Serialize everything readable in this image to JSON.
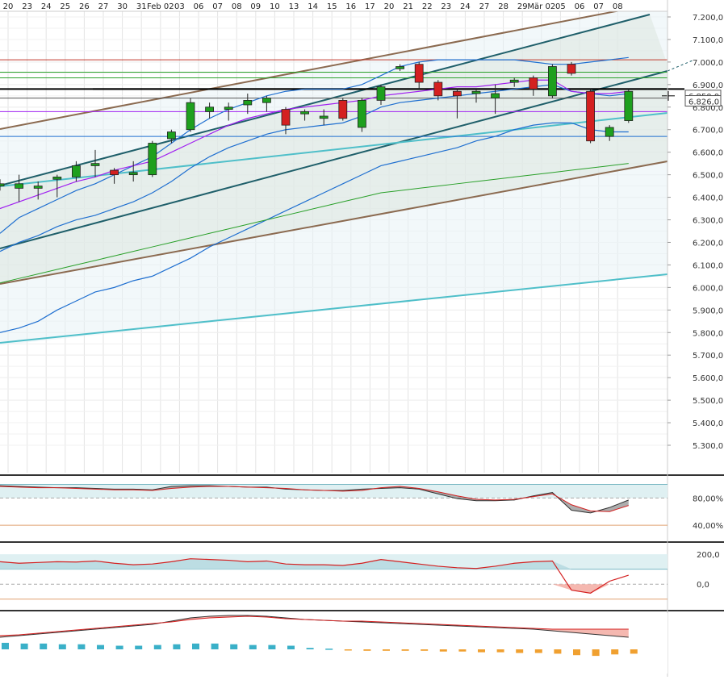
{
  "chart_data": [
    {
      "type": "candlestick",
      "panel": "price",
      "x_labels": [
        "20",
        "23",
        "24",
        "25",
        "26",
        "27",
        "30",
        "31",
        "Feb 02",
        "03",
        "06",
        "07",
        "08",
        "09",
        "10",
        "13",
        "14",
        "15",
        "16",
        "17",
        "20",
        "21",
        "22",
        "23",
        "24",
        "27",
        "28",
        "29",
        "Mär 02",
        "05",
        "06",
        "07",
        "08"
      ],
      "y_ticks": [
        "7.200,0",
        "7.100,0",
        "7.000,0",
        "6.900,0",
        "6.800,0",
        "6.700,0",
        "6.600,0",
        "6.500,0",
        "6.400,0",
        "6.300,0",
        "6.200,0",
        "6.100,0",
        "6.000,0",
        "5.900,0",
        "5.800,0",
        "5.700,0",
        "5.600,0",
        "5.500,0",
        "5.400,0",
        "5.300,0"
      ],
      "ylim": [
        5250,
        7250
      ],
      "price_tags": [
        "6.850,0",
        "6.826,0"
      ],
      "candles": [
        {
          "x": "20",
          "o": 6450,
          "h": 6480,
          "l": 6430,
          "c": 6460
        },
        {
          "x": "23",
          "o": 6440,
          "h": 6500,
          "l": 6380,
          "c": 6460
        },
        {
          "x": "24",
          "o": 6440,
          "h": 6470,
          "l": 6390,
          "c": 6450
        },
        {
          "x": "25",
          "o": 6480,
          "h": 6500,
          "l": 6400,
          "c": 6490
        },
        {
          "x": "26",
          "o": 6490,
          "h": 6560,
          "l": 6470,
          "c": 6540
        },
        {
          "x": "27",
          "o": 6540,
          "h": 6610,
          "l": 6490,
          "c": 6550
        },
        {
          "x": "30",
          "o": 6520,
          "h": 6530,
          "l": 6460,
          "c": 6500
        },
        {
          "x": "31",
          "o": 6500,
          "h": 6560,
          "l": 6470,
          "c": 6510
        },
        {
          "x": "Feb 02",
          "o": 6500,
          "h": 6650,
          "l": 6490,
          "c": 6640
        },
        {
          "x": "03",
          "o": 6660,
          "h": 6700,
          "l": 6640,
          "c": 6690
        },
        {
          "x": "06",
          "o": 6700,
          "h": 6840,
          "l": 6690,
          "c": 6820
        },
        {
          "x": "07",
          "o": 6780,
          "h": 6820,
          "l": 6750,
          "c": 6800
        },
        {
          "x": "08",
          "o": 6790,
          "h": 6820,
          "l": 6740,
          "c": 6800
        },
        {
          "x": "09",
          "o": 6810,
          "h": 6860,
          "l": 6770,
          "c": 6830
        },
        {
          "x": "10",
          "o": 6820,
          "h": 6850,
          "l": 6780,
          "c": 6840
        },
        {
          "x": "13",
          "o": 6790,
          "h": 6800,
          "l": 6680,
          "c": 6720
        },
        {
          "x": "14",
          "o": 6770,
          "h": 6790,
          "l": 6740,
          "c": 6780
        },
        {
          "x": "15",
          "o": 6750,
          "h": 6790,
          "l": 6720,
          "c": 6760
        },
        {
          "x": "16",
          "o": 6830,
          "h": 6840,
          "l": 6740,
          "c": 6750
        },
        {
          "x": "17",
          "o": 6710,
          "h": 6840,
          "l": 6690,
          "c": 6830
        },
        {
          "x": "20",
          "o": 6830,
          "h": 6900,
          "l": 6810,
          "c": 6890
        },
        {
          "x": "21",
          "o": 6970,
          "h": 6990,
          "l": 6960,
          "c": 6980
        },
        {
          "x": "22",
          "o": 6990,
          "h": 7000,
          "l": 6880,
          "c": 6910
        },
        {
          "x": "23",
          "o": 6910,
          "h": 6920,
          "l": 6830,
          "c": 6850
        },
        {
          "x": "24",
          "o": 6870,
          "h": 6880,
          "l": 6750,
          "c": 6850
        },
        {
          "x": "27",
          "o": 6860,
          "h": 6880,
          "l": 6820,
          "c": 6870
        },
        {
          "x": "28",
          "o": 6840,
          "h": 6900,
          "l": 6770,
          "c": 6860
        },
        {
          "x": "29",
          "o": 6910,
          "h": 6930,
          "l": 6890,
          "c": 6920
        },
        {
          "x": "Mär 02",
          "o": 6930,
          "h": 6940,
          "l": 6850,
          "c": 6880
        },
        {
          "x": "05",
          "o": 6850,
          "h": 6990,
          "l": 6840,
          "c": 6980
        },
        {
          "x": "06",
          "o": 6990,
          "h": 7000,
          "l": 6940,
          "c": 6950
        },
        {
          "x": "07",
          "o": 6870,
          "h": 6880,
          "l": 6640,
          "c": 6650
        },
        {
          "x": "08",
          "o": 6670,
          "h": 6720,
          "l": 6650,
          "c": 6710
        },
        {
          "x": "09",
          "o": 6740,
          "h": 6880,
          "l": 6730,
          "c": 6870
        }
      ],
      "horizontal_lines": [
        {
          "y": 7010,
          "color": "#c0392b"
        },
        {
          "y": 6955,
          "color": "#2aa02a"
        },
        {
          "y": 6930,
          "color": "#2aa02a"
        },
        {
          "y": 6880,
          "color": "#000000"
        },
        {
          "y": 6840,
          "color": "#555555"
        },
        {
          "y": 6780,
          "color": "#a020f0"
        },
        {
          "y": 6670,
          "color": "#1f6fd0"
        }
      ],
      "colors": {
        "up": "#1ea01e",
        "down": "#d42020",
        "channel_outer": "#8b6a50",
        "channel_inner": "#1f5f6a",
        "channel_light": "#4fbfc9"
      }
    },
    {
      "type": "area",
      "panel": "oscillator-1",
      "y_ticks": [
        "80,00%",
        "40,00%"
      ],
      "ylim": [
        20,
        110
      ],
      "series_a": [
        98,
        97,
        96,
        95,
        95,
        94,
        93,
        93,
        92,
        97,
        98,
        98,
        97,
        96,
        96,
        93,
        92,
        91,
        91,
        93,
        94,
        95,
        93,
        86,
        79,
        76,
        76,
        77,
        83,
        88,
        62,
        58,
        66,
        77
      ],
      "series_b": [
        97,
        96,
        95,
        95,
        94,
        93,
        92,
        92,
        91,
        94,
        96,
        97,
        97,
        96,
        95,
        94,
        92,
        91,
        90,
        91,
        95,
        97,
        94,
        89,
        83,
        78,
        77,
        78,
        82,
        86,
        70,
        61,
        60,
        69
      ]
    },
    {
      "type": "line",
      "panel": "oscillator-2",
      "y_ticks": [
        "200,0",
        "0,0"
      ],
      "ylim": [
        -150,
        260
      ],
      "values": [
        150,
        140,
        145,
        150,
        148,
        155,
        140,
        130,
        135,
        150,
        170,
        165,
        160,
        150,
        155,
        135,
        130,
        130,
        125,
        140,
        165,
        150,
        135,
        120,
        110,
        105,
        120,
        140,
        150,
        155,
        -40,
        -60,
        20,
        60
      ]
    },
    {
      "type": "bar",
      "panel": "histogram",
      "values": [
        9,
        8,
        8,
        7,
        7,
        6,
        5,
        5,
        6,
        7,
        8,
        8,
        7,
        6,
        6,
        5,
        2,
        1,
        -1,
        -2,
        -2,
        -2,
        -2,
        -3,
        -3,
        -4,
        -4,
        -5,
        -5,
        -6,
        -8,
        -9,
        -7,
        -6
      ],
      "colors": {
        "pos": "#3ab0c8",
        "neg": "#f0a030"
      }
    }
  ]
}
